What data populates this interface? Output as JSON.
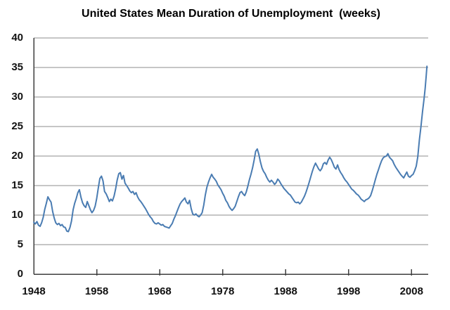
{
  "chart_data": {
    "type": "line",
    "title": "United States Mean Duration of Unemployment  (weeks)",
    "xlabel": "",
    "ylabel": "",
    "legend": "none",
    "grid": "horizontal",
    "xlim": [
      1948,
      2010.65
    ],
    "ylim": [
      0,
      40
    ],
    "xticks": [
      1948,
      1958,
      1968,
      1978,
      1988,
      1998,
      2008
    ],
    "yticks": [
      0,
      5,
      10,
      15,
      20,
      25,
      30,
      35,
      40
    ],
    "colors": {
      "line": "#4a7cb2",
      "gridline": "#8e8e8e",
      "axis": "#3f3f3f",
      "text": "#111111",
      "background": "#ffffff"
    },
    "series": [
      {
        "name": "Mean duration of unemployment (weeks)",
        "color": "#4a7cb2",
        "points": [
          [
            1948.0,
            8.8
          ],
          [
            1948.25,
            8.5
          ],
          [
            1948.5,
            8.9
          ],
          [
            1948.75,
            8.3
          ],
          [
            1949.0,
            8.1
          ],
          [
            1949.25,
            8.7
          ],
          [
            1949.5,
            9.6
          ],
          [
            1949.75,
            11.0
          ],
          [
            1950.0,
            12.0
          ],
          [
            1950.25,
            13.1
          ],
          [
            1950.5,
            12.6
          ],
          [
            1950.75,
            12.2
          ],
          [
            1951.0,
            10.6
          ],
          [
            1951.25,
            9.5
          ],
          [
            1951.5,
            8.7
          ],
          [
            1951.75,
            8.4
          ],
          [
            1952.0,
            8.6
          ],
          [
            1952.25,
            8.2
          ],
          [
            1952.5,
            8.4
          ],
          [
            1952.75,
            8.0
          ],
          [
            1953.0,
            7.9
          ],
          [
            1953.25,
            7.3
          ],
          [
            1953.5,
            7.2
          ],
          [
            1953.75,
            7.9
          ],
          [
            1954.0,
            9.0
          ],
          [
            1954.25,
            10.9
          ],
          [
            1954.5,
            12.0
          ],
          [
            1954.75,
            12.8
          ],
          [
            1955.0,
            13.8
          ],
          [
            1955.25,
            14.3
          ],
          [
            1955.5,
            13.0
          ],
          [
            1955.75,
            12.1
          ],
          [
            1956.0,
            11.6
          ],
          [
            1956.25,
            11.3
          ],
          [
            1956.5,
            12.3
          ],
          [
            1956.75,
            11.6
          ],
          [
            1957.0,
            10.9
          ],
          [
            1957.25,
            10.4
          ],
          [
            1957.5,
            10.8
          ],
          [
            1957.75,
            11.5
          ],
          [
            1958.0,
            12.8
          ],
          [
            1958.25,
            14.6
          ],
          [
            1958.5,
            16.2
          ],
          [
            1958.75,
            16.6
          ],
          [
            1959.0,
            15.8
          ],
          [
            1959.25,
            14.0
          ],
          [
            1959.5,
            13.6
          ],
          [
            1959.75,
            13.0
          ],
          [
            1960.0,
            12.3
          ],
          [
            1960.25,
            12.7
          ],
          [
            1960.5,
            12.4
          ],
          [
            1960.75,
            13.2
          ],
          [
            1961.0,
            14.4
          ],
          [
            1961.25,
            15.9
          ],
          [
            1961.5,
            17.0
          ],
          [
            1961.75,
            17.2
          ],
          [
            1962.0,
            16.1
          ],
          [
            1962.25,
            16.7
          ],
          [
            1962.5,
            15.4
          ],
          [
            1962.75,
            15.0
          ],
          [
            1963.0,
            14.6
          ],
          [
            1963.25,
            14.1
          ],
          [
            1963.5,
            13.8
          ],
          [
            1963.75,
            14.0
          ],
          [
            1964.0,
            13.5
          ],
          [
            1964.25,
            13.8
          ],
          [
            1964.5,
            13.1
          ],
          [
            1964.75,
            12.6
          ],
          [
            1965.0,
            12.3
          ],
          [
            1965.25,
            11.9
          ],
          [
            1965.5,
            11.5
          ],
          [
            1965.75,
            11.1
          ],
          [
            1966.0,
            10.6
          ],
          [
            1966.25,
            10.1
          ],
          [
            1966.5,
            9.7
          ],
          [
            1966.75,
            9.4
          ],
          [
            1967.0,
            8.9
          ],
          [
            1967.25,
            8.6
          ],
          [
            1967.5,
            8.5
          ],
          [
            1967.75,
            8.7
          ],
          [
            1968.0,
            8.5
          ],
          [
            1968.25,
            8.3
          ],
          [
            1968.5,
            8.4
          ],
          [
            1968.75,
            8.1
          ],
          [
            1969.0,
            8.0
          ],
          [
            1969.25,
            7.9
          ],
          [
            1969.5,
            7.8
          ],
          [
            1969.75,
            8.2
          ],
          [
            1970.0,
            8.6
          ],
          [
            1970.25,
            9.3
          ],
          [
            1970.5,
            9.9
          ],
          [
            1970.75,
            10.6
          ],
          [
            1971.0,
            11.3
          ],
          [
            1971.25,
            11.9
          ],
          [
            1971.5,
            12.3
          ],
          [
            1971.75,
            12.6
          ],
          [
            1972.0,
            12.9
          ],
          [
            1972.25,
            12.2
          ],
          [
            1972.5,
            11.9
          ],
          [
            1972.75,
            12.5
          ],
          [
            1973.0,
            11.1
          ],
          [
            1973.25,
            10.2
          ],
          [
            1973.5,
            10.0
          ],
          [
            1973.75,
            10.2
          ],
          [
            1974.0,
            9.9
          ],
          [
            1974.25,
            9.7
          ],
          [
            1974.5,
            10.0
          ],
          [
            1974.75,
            10.4
          ],
          [
            1975.0,
            11.7
          ],
          [
            1975.25,
            13.4
          ],
          [
            1975.5,
            14.7
          ],
          [
            1975.75,
            15.6
          ],
          [
            1976.0,
            16.3
          ],
          [
            1976.25,
            16.9
          ],
          [
            1976.5,
            16.4
          ],
          [
            1976.75,
            16.1
          ],
          [
            1977.0,
            15.7
          ],
          [
            1977.25,
            15.1
          ],
          [
            1977.5,
            14.7
          ],
          [
            1977.75,
            14.3
          ],
          [
            1978.0,
            13.7
          ],
          [
            1978.25,
            13.2
          ],
          [
            1978.5,
            12.5
          ],
          [
            1978.75,
            12.1
          ],
          [
            1979.0,
            11.5
          ],
          [
            1979.25,
            11.1
          ],
          [
            1979.5,
            10.8
          ],
          [
            1979.75,
            11.1
          ],
          [
            1980.0,
            11.5
          ],
          [
            1980.25,
            12.3
          ],
          [
            1980.5,
            13.1
          ],
          [
            1980.75,
            13.8
          ],
          [
            1981.0,
            14.0
          ],
          [
            1981.25,
            13.6
          ],
          [
            1981.5,
            13.3
          ],
          [
            1981.75,
            13.9
          ],
          [
            1982.0,
            14.9
          ],
          [
            1982.25,
            16.0
          ],
          [
            1982.5,
            16.9
          ],
          [
            1982.75,
            18.0
          ],
          [
            1983.0,
            19.3
          ],
          [
            1983.25,
            20.8
          ],
          [
            1983.5,
            21.2
          ],
          [
            1983.75,
            20.3
          ],
          [
            1984.0,
            19.0
          ],
          [
            1984.25,
            18.0
          ],
          [
            1984.5,
            17.4
          ],
          [
            1984.75,
            17.0
          ],
          [
            1985.0,
            16.4
          ],
          [
            1985.25,
            15.9
          ],
          [
            1985.5,
            15.6
          ],
          [
            1985.75,
            15.9
          ],
          [
            1986.0,
            15.6
          ],
          [
            1986.25,
            15.2
          ],
          [
            1986.5,
            15.5
          ],
          [
            1986.75,
            16.1
          ],
          [
            1987.0,
            15.8
          ],
          [
            1987.25,
            15.3
          ],
          [
            1987.5,
            14.9
          ],
          [
            1987.75,
            14.5
          ],
          [
            1988.0,
            14.2
          ],
          [
            1988.25,
            13.9
          ],
          [
            1988.5,
            13.6
          ],
          [
            1988.75,
            13.4
          ],
          [
            1989.0,
            13.0
          ],
          [
            1989.25,
            12.6
          ],
          [
            1989.5,
            12.2
          ],
          [
            1989.75,
            12.1
          ],
          [
            1990.0,
            12.2
          ],
          [
            1990.25,
            11.9
          ],
          [
            1990.5,
            12.2
          ],
          [
            1990.75,
            12.7
          ],
          [
            1991.0,
            13.2
          ],
          [
            1991.25,
            13.9
          ],
          [
            1991.5,
            14.7
          ],
          [
            1991.75,
            15.6
          ],
          [
            1992.0,
            16.5
          ],
          [
            1992.25,
            17.4
          ],
          [
            1992.5,
            18.2
          ],
          [
            1992.75,
            18.8
          ],
          [
            1993.0,
            18.3
          ],
          [
            1993.25,
            17.8
          ],
          [
            1993.5,
            17.5
          ],
          [
            1993.75,
            17.9
          ],
          [
            1994.0,
            18.7
          ],
          [
            1994.25,
            18.9
          ],
          [
            1994.5,
            18.6
          ],
          [
            1994.75,
            19.3
          ],
          [
            1995.0,
            19.8
          ],
          [
            1995.25,
            19.4
          ],
          [
            1995.5,
            18.8
          ],
          [
            1995.75,
            18.1
          ],
          [
            1996.0,
            17.8
          ],
          [
            1996.25,
            18.5
          ],
          [
            1996.5,
            17.7
          ],
          [
            1996.75,
            17.2
          ],
          [
            1997.0,
            16.8
          ],
          [
            1997.25,
            16.3
          ],
          [
            1997.5,
            15.9
          ],
          [
            1997.75,
            15.6
          ],
          [
            1998.0,
            15.2
          ],
          [
            1998.25,
            14.8
          ],
          [
            1998.5,
            14.4
          ],
          [
            1998.75,
            14.2
          ],
          [
            1999.0,
            13.9
          ],
          [
            1999.25,
            13.6
          ],
          [
            1999.5,
            13.4
          ],
          [
            1999.75,
            13.1
          ],
          [
            2000.0,
            12.7
          ],
          [
            2000.25,
            12.5
          ],
          [
            2000.5,
            12.3
          ],
          [
            2000.75,
            12.6
          ],
          [
            2001.0,
            12.7
          ],
          [
            2001.25,
            12.9
          ],
          [
            2001.5,
            13.3
          ],
          [
            2001.75,
            14.1
          ],
          [
            2002.0,
            15.0
          ],
          [
            2002.25,
            16.0
          ],
          [
            2002.5,
            16.9
          ],
          [
            2002.75,
            17.7
          ],
          [
            2003.0,
            18.5
          ],
          [
            2003.25,
            19.2
          ],
          [
            2003.5,
            19.7
          ],
          [
            2003.75,
            19.9
          ],
          [
            2004.0,
            20.0
          ],
          [
            2004.25,
            20.4
          ],
          [
            2004.5,
            19.8
          ],
          [
            2004.75,
            19.5
          ],
          [
            2005.0,
            19.2
          ],
          [
            2005.25,
            18.6
          ],
          [
            2005.5,
            18.1
          ],
          [
            2005.75,
            17.7
          ],
          [
            2006.0,
            17.3
          ],
          [
            2006.25,
            16.9
          ],
          [
            2006.5,
            16.6
          ],
          [
            2006.75,
            16.3
          ],
          [
            2007.0,
            16.8
          ],
          [
            2007.25,
            17.3
          ],
          [
            2007.5,
            16.6
          ],
          [
            2007.75,
            16.4
          ],
          [
            2008.0,
            16.7
          ],
          [
            2008.25,
            16.9
          ],
          [
            2008.5,
            17.5
          ],
          [
            2008.75,
            18.3
          ],
          [
            2009.0,
            19.9
          ],
          [
            2009.25,
            22.8
          ],
          [
            2009.5,
            25.0
          ],
          [
            2009.75,
            27.5
          ],
          [
            2010.0,
            29.8
          ],
          [
            2010.17,
            31.5
          ],
          [
            2010.33,
            33.5
          ],
          [
            2010.45,
            35.2
          ]
        ]
      }
    ]
  }
}
